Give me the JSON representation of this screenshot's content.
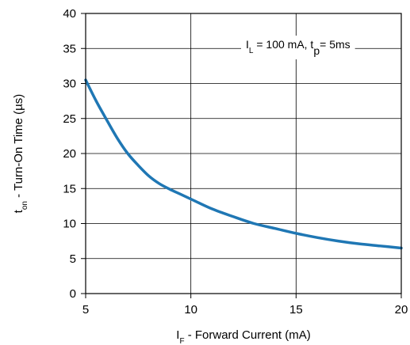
{
  "chart_data": {
    "type": "line",
    "title": "",
    "xlabel": {
      "main": "I",
      "sub": "F",
      "rest": " - Forward Current (mA)"
    },
    "ylabel": {
      "main": "t",
      "sub": "on",
      "rest": " - Turn-On Time (µs)"
    },
    "xlim": [
      5,
      20
    ],
    "ylim": [
      0,
      40
    ],
    "x_ticks": [
      5,
      10,
      15,
      20
    ],
    "y_ticks": [
      0,
      5,
      10,
      15,
      20,
      25,
      30,
      35,
      40
    ],
    "grid": true,
    "annotation": {
      "i": "I",
      "l_sub": "L",
      "mid": " =  100 mA, t",
      "p_sub": "p",
      "end": "= 5ms"
    },
    "series": [
      {
        "x": [
          5,
          5.5,
          6,
          6.5,
          7,
          7.5,
          8,
          8.5,
          9,
          9.5,
          10,
          11,
          12,
          13,
          14,
          15,
          16,
          17,
          18,
          19,
          20
        ],
        "y": [
          30.5,
          27.5,
          24.8,
          22.2,
          20.0,
          18.3,
          16.8,
          15.7,
          14.9,
          14.2,
          13.5,
          12.1,
          11.0,
          10.0,
          9.3,
          8.6,
          8.0,
          7.5,
          7.1,
          6.8,
          6.5
        ],
        "color": "#1f77b4"
      }
    ]
  }
}
